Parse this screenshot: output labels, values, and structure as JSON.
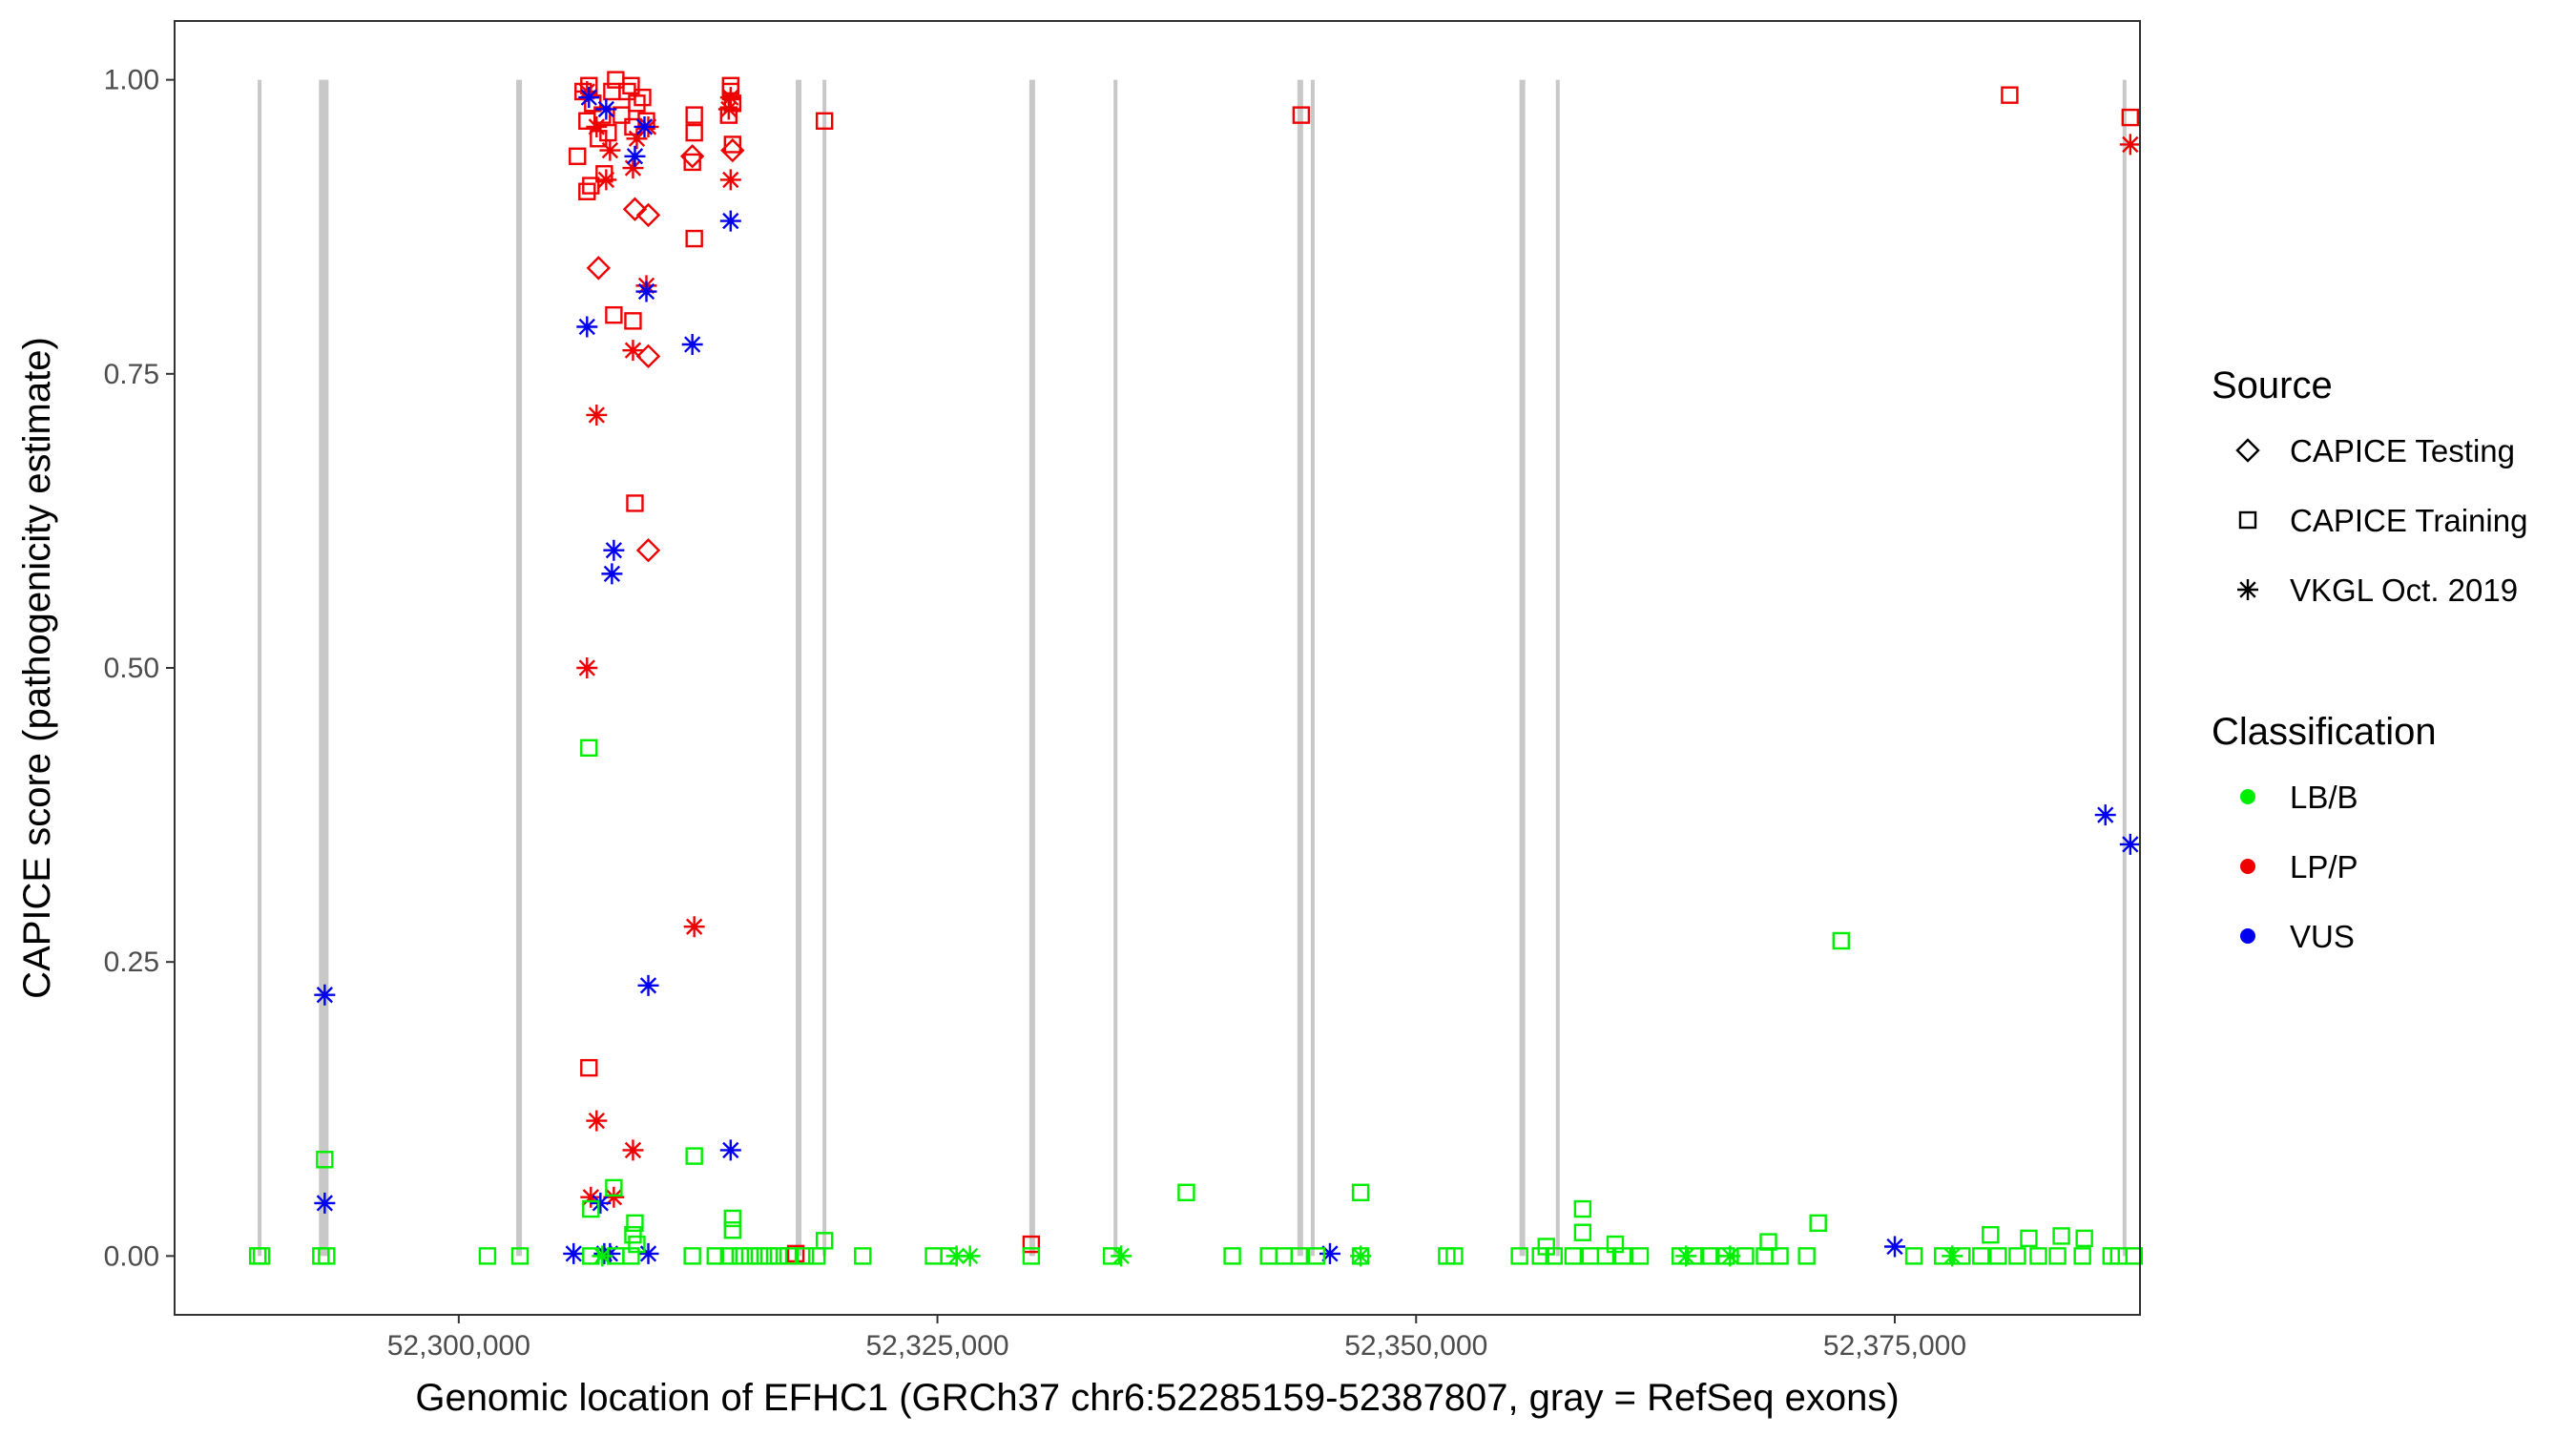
{
  "chart_data": {
    "type": "scatter",
    "xlabel": "Genomic location of EFHC1 (GRCh37 chr6:52285159-52387807, gray = RefSeq exons)",
    "ylabel": "CAPICE score (pathogenicity estimate)",
    "xlim": [
      52285159,
      52387807
    ],
    "ylim": [
      -0.05,
      1.05
    ],
    "x_ticks": [
      52300000,
      52325000,
      52350000,
      52375000
    ],
    "x_tick_labels": [
      "52,300,000",
      "52,325,000",
      "52,350,000",
      "52,375,000"
    ],
    "y_ticks": [
      0.0,
      0.25,
      0.5,
      0.75,
      1.0
    ],
    "y_tick_labels": [
      "0.00",
      "0.25",
      "0.50",
      "0.75",
      "1.00"
    ],
    "grid": false,
    "exons": [
      [
        52289500,
        52289700
      ],
      [
        52292700,
        52293200
      ],
      [
        52303000,
        52303300
      ],
      [
        52317600,
        52317900
      ],
      [
        52319000,
        52319200
      ],
      [
        52329800,
        52330100
      ],
      [
        52334200,
        52334400
      ],
      [
        52343800,
        52344100
      ],
      [
        52344500,
        52344700
      ],
      [
        52355400,
        52355700
      ],
      [
        52357300,
        52357500
      ],
      [
        52386900,
        52387100
      ]
    ],
    "legend": {
      "position": "right",
      "source": {
        "title": "Source",
        "items": [
          {
            "label": "CAPICE Testing",
            "shape": "diamond"
          },
          {
            "label": "CAPICE Training",
            "shape": "square"
          },
          {
            "label": "VKGL Oct. 2019",
            "shape": "asterisk"
          }
        ]
      },
      "classification": {
        "title": "Classification",
        "items": [
          {
            "label": "LB/B",
            "color": "#00ee00"
          },
          {
            "label": "LP/P",
            "color": "#ee0000"
          },
          {
            "label": "VUS",
            "color": "#0000ee"
          }
        ]
      }
    },
    "colors": {
      "LB/B": "#00ee00",
      "LP/P": "#ee0000",
      "VUS": "#0000ee",
      "exon": "#c8c8c8"
    },
    "series": [
      {
        "name": "LP/P",
        "points": [
          [
            52306500,
            0.99,
            "square"
          ],
          [
            52306800,
            0.995,
            "square"
          ],
          [
            52307000,
            0.98,
            "square"
          ],
          [
            52307500,
            0.97,
            "square"
          ],
          [
            52308000,
            0.99,
            "square"
          ],
          [
            52308200,
            1.0,
            "square"
          ],
          [
            52308800,
            0.99,
            "square"
          ],
          [
            52309000,
            0.995,
            "square"
          ],
          [
            52309300,
            0.98,
            "square"
          ],
          [
            52309600,
            0.985,
            "square"
          ],
          [
            52306700,
            0.965,
            "square"
          ],
          [
            52307300,
            0.95,
            "square"
          ],
          [
            52307800,
            0.955,
            "square"
          ],
          [
            52308500,
            0.97,
            "square"
          ],
          [
            52309100,
            0.96,
            "square"
          ],
          [
            52309800,
            0.965,
            "square"
          ],
          [
            52306200,
            0.935,
            "square"
          ],
          [
            52307600,
            0.92,
            "square"
          ],
          [
            52306900,
            0.91,
            "square"
          ],
          [
            52306700,
            0.905,
            "square"
          ],
          [
            52312300,
            0.97,
            "square"
          ],
          [
            52312300,
            0.955,
            "square"
          ],
          [
            52312200,
            0.93,
            "square"
          ],
          [
            52314200,
            0.995,
            "square"
          ],
          [
            52314200,
            0.99,
            "square"
          ],
          [
            52314300,
            0.98,
            "square"
          ],
          [
            52314100,
            0.97,
            "square"
          ],
          [
            52314300,
            0.945,
            "square"
          ],
          [
            52319100,
            0.965,
            "square"
          ],
          [
            52312300,
            0.865,
            "square"
          ],
          [
            52308100,
            0.8,
            "square"
          ],
          [
            52309100,
            0.795,
            "square"
          ],
          [
            52309200,
            0.64,
            "square"
          ],
          [
            52306800,
            0.16,
            "square"
          ],
          [
            52317600,
            0.002,
            "square"
          ],
          [
            52329900,
            0.01,
            "square"
          ],
          [
            52344000,
            0.97,
            "square"
          ],
          [
            52381000,
            0.987,
            "square"
          ],
          [
            52387300,
            0.968,
            "square"
          ],
          [
            52312200,
            0.935,
            "diamond"
          ],
          [
            52314300,
            0.94,
            "diamond"
          ],
          [
            52309200,
            0.89,
            "diamond"
          ],
          [
            52309900,
            0.885,
            "diamond"
          ],
          [
            52307300,
            0.84,
            "diamond"
          ],
          [
            52309900,
            0.765,
            "diamond"
          ],
          [
            52309900,
            0.6,
            "diamond"
          ],
          [
            52306700,
            0.99,
            "asterisk"
          ],
          [
            52307200,
            0.96,
            "asterisk"
          ],
          [
            52307900,
            0.94,
            "asterisk"
          ],
          [
            52309300,
            0.95,
            "asterisk"
          ],
          [
            52309900,
            0.96,
            "asterisk"
          ],
          [
            52314200,
            0.985,
            "asterisk"
          ],
          [
            52314100,
            0.975,
            "asterisk"
          ],
          [
            52307700,
            0.915,
            "asterisk"
          ],
          [
            52309100,
            0.925,
            "asterisk"
          ],
          [
            52314200,
            0.915,
            "asterisk"
          ],
          [
            52309800,
            0.825,
            "asterisk"
          ],
          [
            52309100,
            0.77,
            "asterisk"
          ],
          [
            52307200,
            0.715,
            "asterisk"
          ],
          [
            52306700,
            0.5,
            "asterisk"
          ],
          [
            52312300,
            0.28,
            "asterisk"
          ],
          [
            52307200,
            0.115,
            "asterisk"
          ],
          [
            52309100,
            0.09,
            "asterisk"
          ],
          [
            52306900,
            0.05,
            "asterisk"
          ],
          [
            52308100,
            0.05,
            "asterisk"
          ],
          [
            52387300,
            0.945,
            "asterisk"
          ]
        ]
      },
      {
        "name": "VUS",
        "points": [
          [
            52306800,
            0.985,
            "asterisk"
          ],
          [
            52307700,
            0.975,
            "asterisk"
          ],
          [
            52309700,
            0.96,
            "asterisk"
          ],
          [
            52309200,
            0.935,
            "asterisk"
          ],
          [
            52314200,
            0.88,
            "asterisk"
          ],
          [
            52309800,
            0.82,
            "asterisk"
          ],
          [
            52306700,
            0.79,
            "asterisk"
          ],
          [
            52312200,
            0.775,
            "asterisk"
          ],
          [
            52308100,
            0.6,
            "asterisk"
          ],
          [
            52308000,
            0.58,
            "asterisk"
          ],
          [
            52309900,
            0.23,
            "asterisk"
          ],
          [
            52314200,
            0.09,
            "asterisk"
          ],
          [
            52307400,
            0.045,
            "asterisk"
          ],
          [
            52306000,
            0.002,
            "asterisk"
          ],
          [
            52307600,
            0.002,
            "asterisk"
          ],
          [
            52307900,
            0.002,
            "asterisk"
          ],
          [
            52309900,
            0.002,
            "asterisk"
          ],
          [
            52293000,
            0.222,
            "asterisk"
          ],
          [
            52293000,
            0.045,
            "asterisk"
          ],
          [
            52345500,
            0.002,
            "asterisk"
          ],
          [
            52375000,
            0.008,
            "asterisk"
          ],
          [
            52386000,
            0.375,
            "asterisk"
          ],
          [
            52387300,
            0.35,
            "asterisk"
          ]
        ]
      },
      {
        "name": "LB/B",
        "points": [
          [
            52306800,
            0.432,
            "square"
          ],
          [
            52372200,
            0.268,
            "square"
          ],
          [
            52293000,
            0.082,
            "square"
          ],
          [
            52312300,
            0.085,
            "square"
          ],
          [
            52308100,
            0.058,
            "square"
          ],
          [
            52306900,
            0.04,
            "square"
          ],
          [
            52309200,
            0.028,
            "square"
          ],
          [
            52309100,
            0.018,
            "square"
          ],
          [
            52309300,
            0.01,
            "square"
          ],
          [
            52314300,
            0.032,
            "square"
          ],
          [
            52314300,
            0.022,
            "square"
          ],
          [
            52319100,
            0.013,
            "square"
          ],
          [
            52338000,
            0.054,
            "square"
          ],
          [
            52347100,
            0.054,
            "square"
          ],
          [
            52358700,
            0.04,
            "square"
          ],
          [
            52358700,
            0.02,
            "square"
          ],
          [
            52371000,
            0.028,
            "square"
          ],
          [
            52380000,
            0.018,
            "square"
          ],
          [
            52382000,
            0.015,
            "square"
          ],
          [
            52383700,
            0.017,
            "square"
          ],
          [
            52384900,
            0.015,
            "square"
          ],
          [
            52368400,
            0.012,
            "square"
          ],
          [
            52360400,
            0.01,
            "square"
          ],
          [
            52356800,
            0.008,
            "square"
          ],
          [
            52289500,
            0.0,
            "square"
          ],
          [
            52289700,
            0.0,
            "square"
          ],
          [
            52292800,
            0.0,
            "square"
          ],
          [
            52293100,
            0.0,
            "square"
          ],
          [
            52301500,
            0.0,
            "square"
          ],
          [
            52303200,
            0.0,
            "square"
          ],
          [
            52306900,
            0.0,
            "square"
          ],
          [
            52308200,
            0.0,
            "square"
          ],
          [
            52309000,
            0.0,
            "square"
          ],
          [
            52312200,
            0.0,
            "square"
          ],
          [
            52313400,
            0.0,
            "square"
          ],
          [
            52314100,
            0.0,
            "square"
          ],
          [
            52314700,
            0.0,
            "square"
          ],
          [
            52315200,
            0.0,
            "square"
          ],
          [
            52315700,
            0.0,
            "square"
          ],
          [
            52316200,
            0.0,
            "square"
          ],
          [
            52316700,
            0.0,
            "square"
          ],
          [
            52317200,
            0.0,
            "square"
          ],
          [
            52318100,
            0.0,
            "square"
          ],
          [
            52318700,
            0.0,
            "square"
          ],
          [
            52321100,
            0.0,
            "square"
          ],
          [
            52324800,
            0.0,
            "square"
          ],
          [
            52325600,
            0.0,
            "square"
          ],
          [
            52329900,
            0.0,
            "square"
          ],
          [
            52334100,
            0.0,
            "square"
          ],
          [
            52340400,
            0.0,
            "square"
          ],
          [
            52342300,
            0.0,
            "square"
          ],
          [
            52343100,
            0.0,
            "square"
          ],
          [
            52343900,
            0.0,
            "square"
          ],
          [
            52344800,
            0.0,
            "square"
          ],
          [
            52347100,
            0.0,
            "square"
          ],
          [
            52351600,
            0.0,
            "square"
          ],
          [
            52352000,
            0.0,
            "square"
          ],
          [
            52355400,
            0.0,
            "square"
          ],
          [
            52356500,
            0.0,
            "square"
          ],
          [
            52357200,
            0.0,
            "square"
          ],
          [
            52358200,
            0.0,
            "square"
          ],
          [
            52359100,
            0.0,
            "square"
          ],
          [
            52359900,
            0.0,
            "square"
          ],
          [
            52360800,
            0.0,
            "square"
          ],
          [
            52361700,
            0.0,
            "square"
          ],
          [
            52363800,
            0.0,
            "square"
          ],
          [
            52364600,
            0.0,
            "square"
          ],
          [
            52365300,
            0.0,
            "square"
          ],
          [
            52366200,
            0.0,
            "square"
          ],
          [
            52367200,
            0.0,
            "square"
          ],
          [
            52368200,
            0.0,
            "square"
          ],
          [
            52369000,
            0.0,
            "square"
          ],
          [
            52370400,
            0.0,
            "square"
          ],
          [
            52376000,
            0.0,
            "square"
          ],
          [
            52377500,
            0.0,
            "square"
          ],
          [
            52378500,
            0.0,
            "square"
          ],
          [
            52379500,
            0.0,
            "square"
          ],
          [
            52380400,
            0.0,
            "square"
          ],
          [
            52381400,
            0.0,
            "square"
          ],
          [
            52382500,
            0.0,
            "square"
          ],
          [
            52383500,
            0.0,
            "square"
          ],
          [
            52384800,
            0.0,
            "square"
          ],
          [
            52386300,
            0.0,
            "square"
          ],
          [
            52386700,
            0.0,
            "square"
          ],
          [
            52387500,
            0.0,
            "square"
          ],
          [
            52307500,
            0.0,
            "asterisk"
          ],
          [
            52326000,
            0.0,
            "asterisk"
          ],
          [
            52326700,
            0.0,
            "asterisk"
          ],
          [
            52334600,
            0.0,
            "asterisk"
          ],
          [
            52347100,
            0.0,
            "asterisk"
          ],
          [
            52364100,
            0.0,
            "asterisk"
          ],
          [
            52366400,
            0.0,
            "asterisk"
          ],
          [
            52378000,
            0.0,
            "asterisk"
          ]
        ]
      }
    ]
  }
}
